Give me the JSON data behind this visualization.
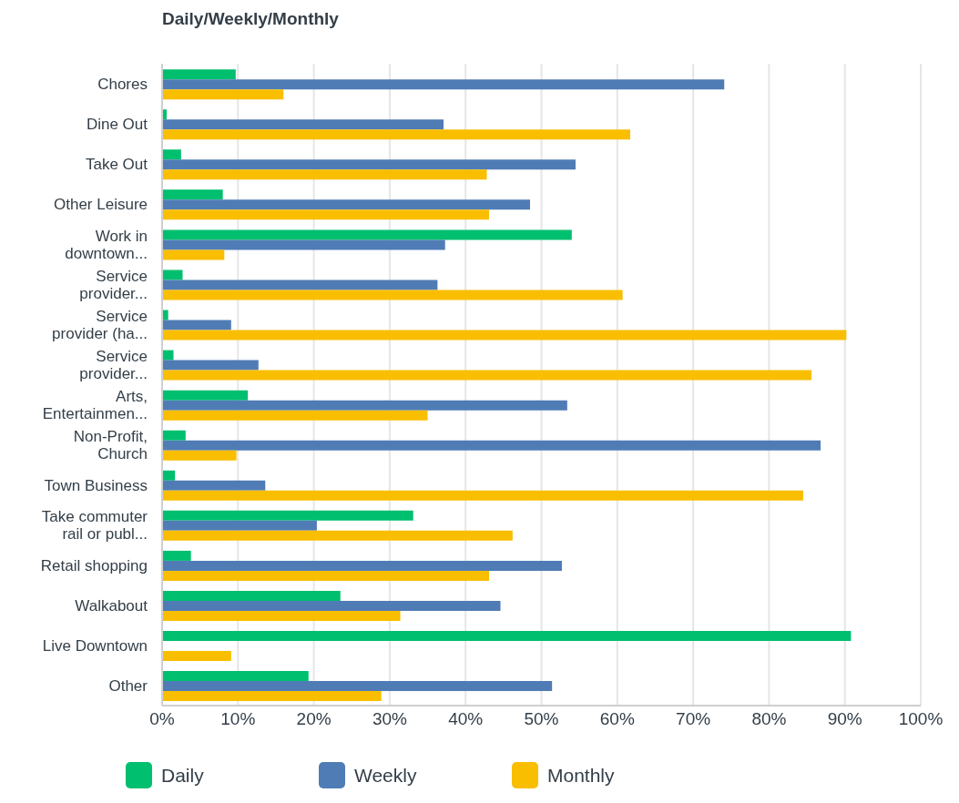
{
  "chart_data": {
    "type": "bar",
    "orientation": "horizontal",
    "title": "Daily/Weekly/Monthly",
    "categories": [
      "Chores",
      "Dine Out",
      "Take Out",
      "Other Leisure",
      "Work in downtown...",
      "Service provider...",
      "Service provider (ha...",
      "Service provider...",
      "Arts, Entertainmen...",
      "Non-Profit, Church",
      "Town Business",
      "Take commuter rail or publ...",
      "Retail shopping",
      "Walkabout",
      "Live Downtown",
      "Other"
    ],
    "series": [
      {
        "name": "Daily",
        "color": "#00bf6f",
        "values": [
          9.7,
          0.6,
          2.5,
          8.0,
          54.0,
          2.7,
          0.8,
          1.5,
          11.3,
          3.1,
          1.7,
          33.1,
          3.8,
          23.5,
          90.8,
          19.3
        ]
      },
      {
        "name": "Weekly",
        "color": "#507cb6",
        "values": [
          74.1,
          37.1,
          54.5,
          48.5,
          37.3,
          36.3,
          9.1,
          12.7,
          53.4,
          86.8,
          13.6,
          20.4,
          52.7,
          44.6,
          null,
          51.4
        ]
      },
      {
        "name": "Monthly",
        "color": "#f9be00",
        "values": [
          16.0,
          61.7,
          42.8,
          43.1,
          8.2,
          60.7,
          90.2,
          85.6,
          35.0,
          9.8,
          84.5,
          46.2,
          43.1,
          31.4,
          9.1,
          28.9
        ]
      }
    ],
    "xlim": [
      0,
      100
    ],
    "xticks": [
      {
        "value": 0,
        "label": "0%"
      },
      {
        "value": 10,
        "label": "10%"
      },
      {
        "value": 20,
        "label": "20%"
      },
      {
        "value": 30,
        "label": "30%"
      },
      {
        "value": 40,
        "label": "40%"
      },
      {
        "value": 50,
        "label": "50%"
      },
      {
        "value": 60,
        "label": "60%"
      },
      {
        "value": 70,
        "label": "70%"
      },
      {
        "value": 80,
        "label": "80%"
      },
      {
        "value": 90,
        "label": "90%"
      },
      {
        "value": 100,
        "label": "100%"
      }
    ],
    "grid": "x",
    "legend": "bottom"
  }
}
